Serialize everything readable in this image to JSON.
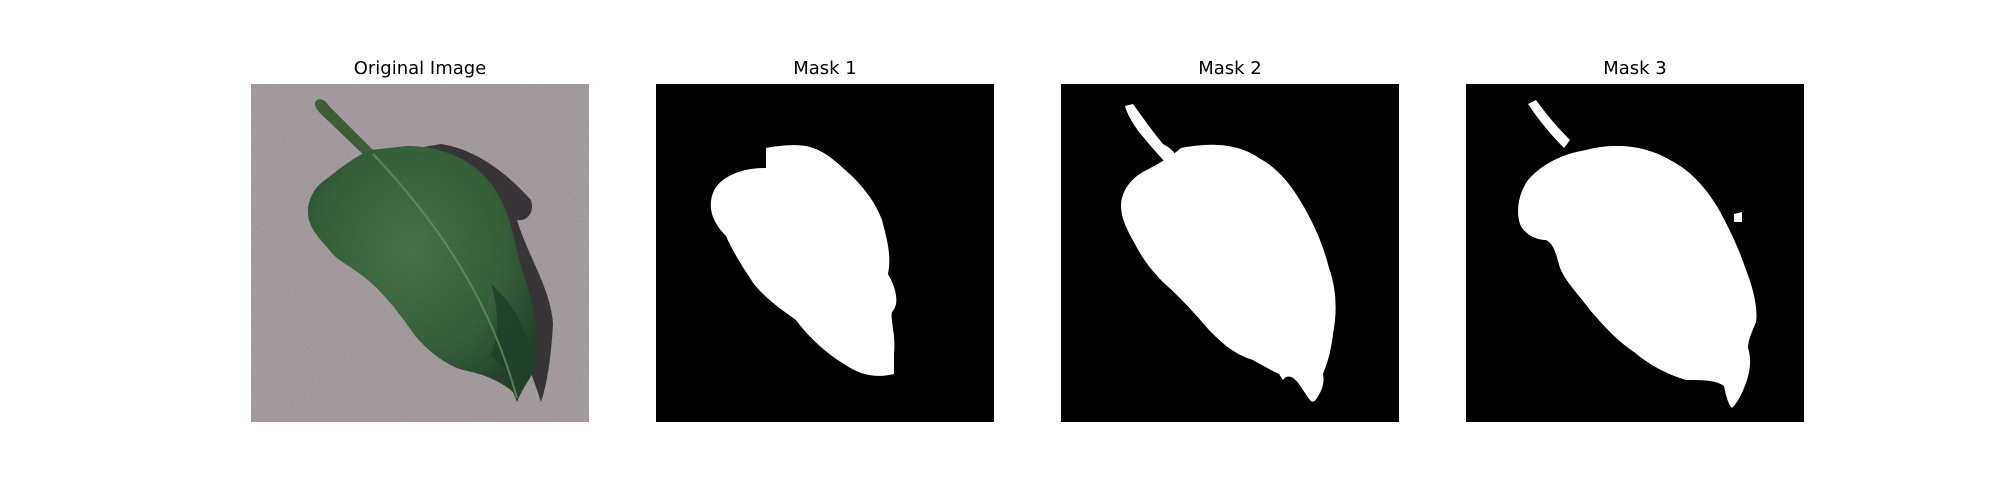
{
  "figure": {
    "panels": [
      {
        "title": "Original Image",
        "content": "photo"
      },
      {
        "title": "Mask 1",
        "content": "mask"
      },
      {
        "title": "Mask 2",
        "content": "mask"
      },
      {
        "title": "Mask 3",
        "content": "mask"
      }
    ]
  },
  "colors": {
    "background": "#ffffff",
    "mask_background": "#000000",
    "mask_foreground": "#ffffff",
    "photo_background": "#b1a7ab",
    "leaf_green": "#3d6a43",
    "leaf_dark": "#22402a",
    "shadow": "#242326"
  }
}
